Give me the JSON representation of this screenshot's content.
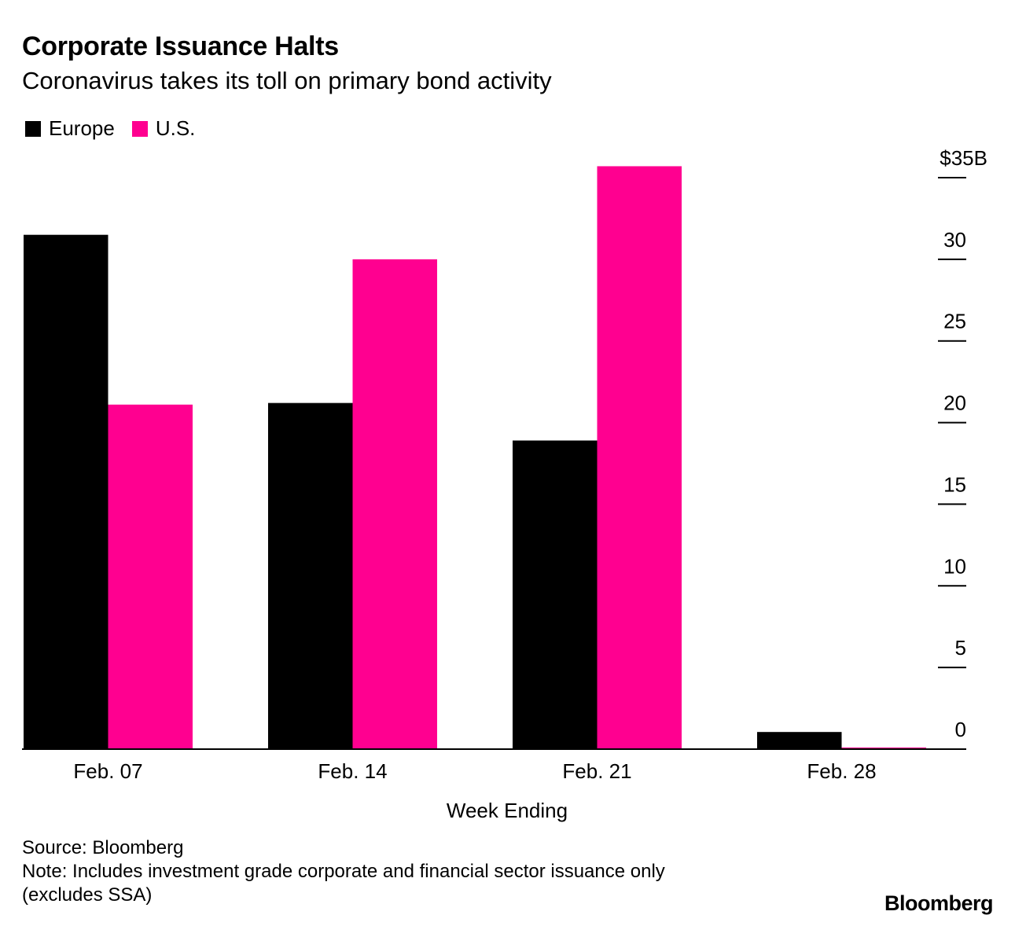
{
  "header": {
    "title": "Corporate Issuance Halts",
    "subtitle": "Coronavirus takes its toll on primary bond activity"
  },
  "legend": {
    "items": [
      {
        "label": "Europe",
        "color": "#000000"
      },
      {
        "label": "U.S.",
        "color": "#ff0090"
      }
    ]
  },
  "chart_data": {
    "type": "bar",
    "categories": [
      "Feb. 07",
      "Feb. 14",
      "Feb. 21",
      "Feb. 28"
    ],
    "series": [
      {
        "name": "Europe",
        "color": "#000000",
        "values": [
          31.5,
          21.2,
          18.9,
          1.05
        ]
      },
      {
        "name": "U.S.",
        "color": "#ff0090",
        "values": [
          21.1,
          30.0,
          35.7,
          0.1
        ]
      }
    ],
    "title": "Corporate Issuance Halts",
    "subtitle": "Coronavirus takes its toll on primary bond activity",
    "xlabel": "Week Ending",
    "ylabel": "",
    "ylim": [
      0,
      35
    ],
    "yticks": [
      0,
      5,
      10,
      15,
      20,
      25,
      30,
      35
    ],
    "ytick_labels": [
      "0",
      "5",
      "10",
      "15",
      "20",
      "25",
      "30",
      "$35B"
    ],
    "y_axis_side": "right",
    "grid": false
  },
  "footer": {
    "source": "Source: Bloomberg",
    "note_line1": "Note: Includes investment grade corporate and financial sector issuance only",
    "note_line2": "(excludes SSA)"
  },
  "brand": {
    "logo": "Bloomberg"
  }
}
